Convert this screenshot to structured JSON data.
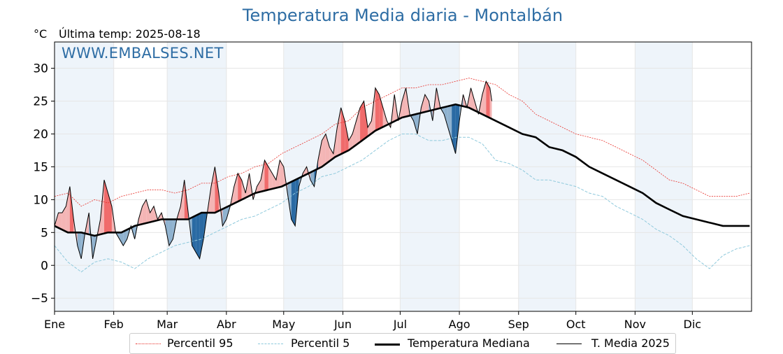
{
  "title": "Temperatura Media diaria - Montalbán",
  "unit": "°C",
  "last_temp_label": "Última temp: 2025-08-18",
  "watermark": "WWW.EMBALSES.NET",
  "colors": {
    "title": "#2e6da4",
    "p95": "#e8302a",
    "p5": "#8ec9dc",
    "median": "#000000",
    "current": "#000000",
    "above_fill": "#f4b5b5",
    "above_strong": "#f06b6b",
    "below_fill": "#8fb2cf",
    "below_strong": "#2a6aa3",
    "month_band": "#eef4fa"
  },
  "legend": [
    {
      "label": "Percentil 95",
      "style": "dotted-red"
    },
    {
      "label": "Percentil 5",
      "style": "dashed-lightblue"
    },
    {
      "label": "Temperatura Mediana",
      "style": "thick-black"
    },
    {
      "label": "T. Media 2025",
      "style": "thin-black"
    }
  ],
  "chart_data": {
    "type": "line",
    "ylim": [
      -7,
      34
    ],
    "yticks": [
      -5,
      0,
      5,
      10,
      15,
      20,
      25,
      30
    ],
    "ytick_labels": [
      "−5",
      "0",
      "5",
      "10",
      "15",
      "20",
      "25",
      "30"
    ],
    "xlim_days": [
      1,
      366
    ],
    "months": [
      {
        "label": "Ene",
        "day": 1
      },
      {
        "label": "Feb",
        "day": 32
      },
      {
        "label": "Mar",
        "day": 60
      },
      {
        "label": "Abr",
        "day": 91
      },
      {
        "label": "May",
        "day": 121
      },
      {
        "label": "Jun",
        "day": 152
      },
      {
        "label": "Jul",
        "day": 182
      },
      {
        "label": "Ago",
        "day": 213
      },
      {
        "label": "Sep",
        "day": 244
      },
      {
        "label": "Oct",
        "day": 274
      },
      {
        "label": "Nov",
        "day": 305
      },
      {
        "label": "Dic",
        "day": 335
      }
    ],
    "grid": true,
    "legend_position": "bottom",
    "series": [
      {
        "name": "Percentil 95",
        "x": [
          1,
          8,
          15,
          22,
          29,
          36,
          43,
          50,
          57,
          64,
          71,
          78,
          85,
          92,
          99,
          106,
          113,
          120,
          127,
          134,
          141,
          148,
          155,
          162,
          169,
          176,
          183,
          190,
          197,
          204,
          211,
          218,
          225,
          232,
          239,
          246,
          253,
          260,
          267,
          274,
          281,
          288,
          295,
          302,
          309,
          316,
          323,
          330,
          337,
          344,
          351,
          358,
          365
        ],
        "y": [
          10.5,
          11,
          9,
          10,
          9.5,
          10.5,
          11,
          11.5,
          11.5,
          11,
          11.5,
          12.5,
          12.5,
          13.5,
          14,
          15,
          15.5,
          17,
          18,
          19,
          20,
          21.5,
          22,
          24,
          25,
          26,
          27,
          27,
          27.5,
          27.5,
          28,
          28.5,
          28,
          27.5,
          26,
          25,
          23,
          22,
          21,
          20,
          19.5,
          19,
          18,
          17,
          16,
          14.5,
          13,
          12.5,
          11.5,
          10.5,
          10.5,
          10.5,
          11
        ]
      },
      {
        "name": "Percentil 5",
        "x": [
          1,
          8,
          15,
          22,
          29,
          36,
          43,
          50,
          57,
          64,
          71,
          78,
          85,
          92,
          99,
          106,
          113,
          120,
          127,
          134,
          141,
          148,
          155,
          162,
          169,
          176,
          183,
          190,
          197,
          204,
          211,
          218,
          225,
          232,
          239,
          246,
          253,
          260,
          267,
          274,
          281,
          288,
          295,
          302,
          309,
          316,
          323,
          330,
          337,
          344,
          351,
          358,
          365
        ],
        "y": [
          3,
          0.5,
          -1,
          0.5,
          1,
          0.5,
          -0.5,
          1,
          2,
          3,
          3.5,
          4,
          5,
          6,
          7,
          7.5,
          8.5,
          9.5,
          11,
          12,
          13.5,
          14,
          15,
          16,
          17.5,
          19,
          20,
          20,
          19,
          19,
          19.5,
          19.5,
          18.5,
          16,
          15.5,
          14.5,
          13,
          13,
          12.5,
          12,
          11,
          10.5,
          9,
          8,
          7,
          5.5,
          4.5,
          3,
          1,
          -0.5,
          1.5,
          2.5,
          3
        ]
      },
      {
        "name": "Temperatura Mediana",
        "x": [
          1,
          8,
          15,
          22,
          29,
          36,
          43,
          50,
          57,
          64,
          71,
          78,
          85,
          92,
          99,
          106,
          113,
          120,
          127,
          134,
          141,
          148,
          155,
          162,
          169,
          176,
          183,
          190,
          197,
          204,
          211,
          218,
          225,
          232,
          239,
          246,
          253,
          260,
          267,
          274,
          281,
          288,
          295,
          302,
          309,
          316,
          323,
          330,
          337,
          344,
          351,
          358,
          365
        ],
        "y": [
          6,
          5,
          5,
          4.5,
          5,
          5,
          6,
          6.5,
          7,
          7,
          7,
          8,
          8,
          9,
          10,
          11,
          11.5,
          12,
          13,
          14,
          15,
          16.5,
          17.5,
          19,
          20.5,
          21.5,
          22.5,
          23,
          23.5,
          24,
          24.5,
          24,
          23,
          22,
          21,
          20,
          19.5,
          18,
          17.5,
          16.5,
          15,
          14,
          13,
          12,
          11,
          9.5,
          8.5,
          7.5,
          7,
          6.5,
          6,
          6,
          6
        ]
      },
      {
        "name": "T. Media 2025",
        "x": [
          1,
          3,
          5,
          7,
          9,
          11,
          13,
          15,
          17,
          19,
          21,
          23,
          25,
          27,
          29,
          31,
          33,
          35,
          37,
          39,
          41,
          43,
          45,
          47,
          49,
          51,
          53,
          55,
          57,
          59,
          61,
          63,
          65,
          67,
          69,
          71,
          73,
          75,
          77,
          79,
          81,
          83,
          85,
          87,
          89,
          91,
          93,
          95,
          97,
          99,
          101,
          103,
          105,
          107,
          109,
          111,
          113,
          115,
          117,
          119,
          121,
          123,
          125,
          127,
          129,
          131,
          133,
          135,
          137,
          139,
          141,
          143,
          145,
          147,
          149,
          151,
          153,
          155,
          157,
          159,
          161,
          163,
          165,
          167,
          169,
          171,
          173,
          175,
          177,
          179,
          181,
          183,
          185,
          187,
          189,
          191,
          193,
          195,
          197,
          199,
          201,
          203,
          205,
          207,
          209,
          211,
          213,
          215,
          217,
          219,
          221,
          223,
          225,
          227,
          229,
          230
        ],
        "y": [
          6,
          8,
          8,
          9,
          12,
          7,
          3,
          1,
          5,
          8,
          1,
          4,
          7,
          13,
          11,
          9,
          5,
          4,
          3,
          4,
          6,
          4,
          7,
          9,
          10,
          8,
          9,
          7,
          8,
          6,
          3,
          4,
          7,
          9,
          13,
          8,
          3,
          2,
          1,
          4,
          8,
          12,
          15,
          11,
          6,
          7,
          9,
          12,
          14,
          13,
          11,
          14,
          10,
          12,
          13,
          16,
          15,
          14,
          13,
          16,
          15,
          11,
          7,
          6,
          12,
          14,
          15,
          13,
          12,
          16,
          19,
          20,
          18,
          17,
          21,
          24,
          22,
          19,
          20,
          22,
          24,
          25,
          21,
          22,
          27,
          26,
          24,
          22,
          21,
          26,
          22,
          25,
          27,
          23,
          22,
          20,
          24,
          26,
          25,
          22,
          27,
          24,
          23,
          21,
          19,
          17,
          22,
          26,
          24,
          27,
          25,
          23,
          26,
          28,
          27,
          25
        ]
      }
    ]
  }
}
